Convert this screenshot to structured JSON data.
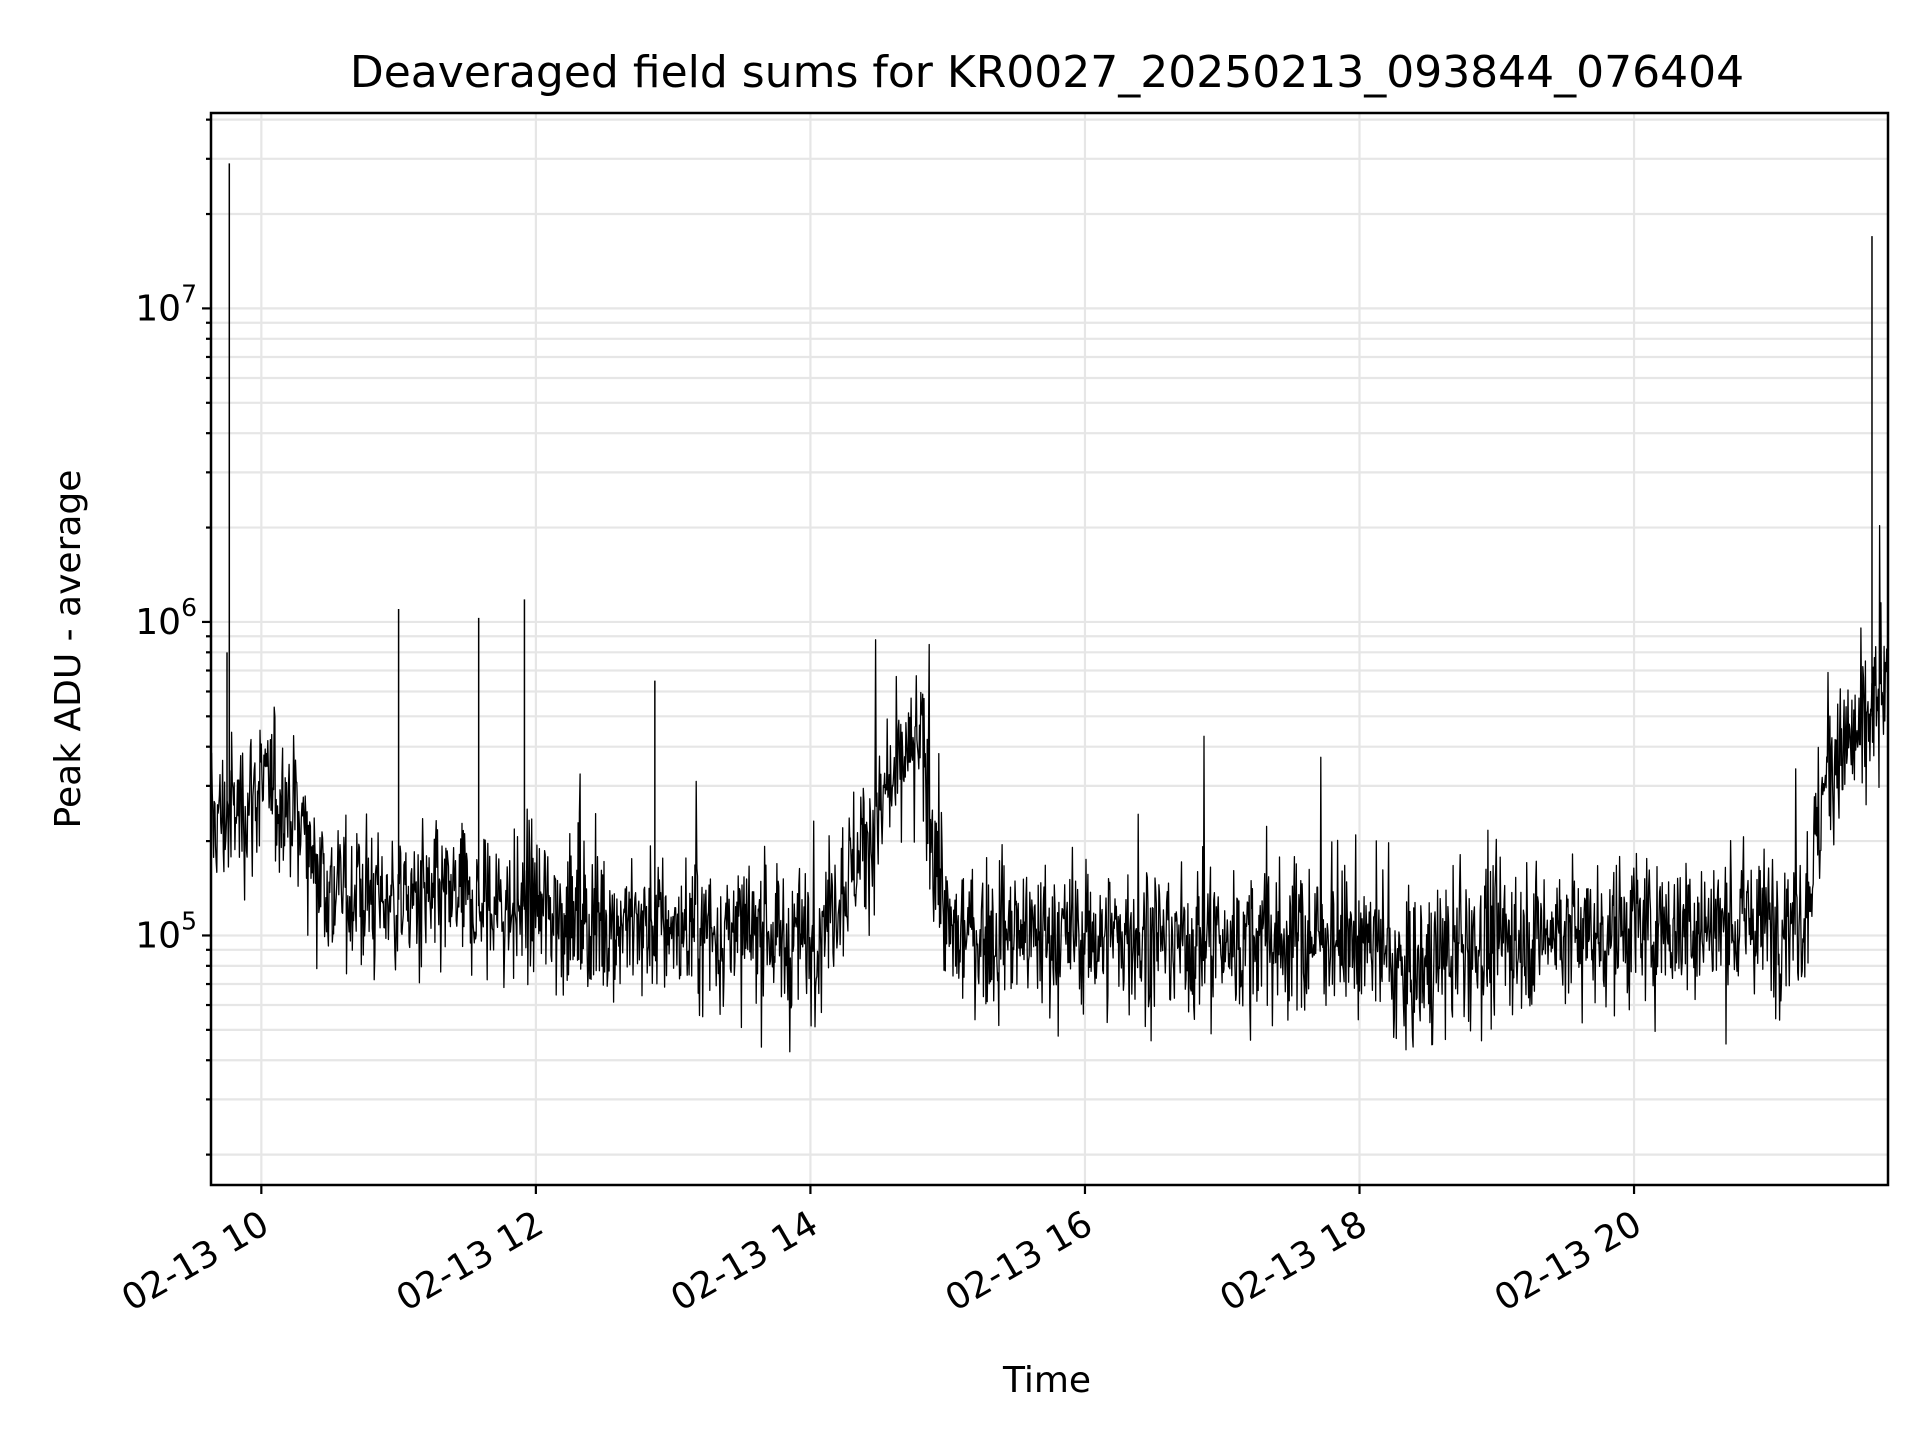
{
  "chart_data": {
    "type": "line",
    "title": "Deaveraged field sums for KR0027_20250213_093844_076404",
    "xlabel": "Time",
    "ylabel": "Peak ADU - average",
    "yscale": "log",
    "grid": "major and minor",
    "x_axis": {
      "type": "datetime",
      "range": [
        "2025-02-13 09:38",
        "2025-02-13 21:51"
      ],
      "ticks": [
        "2025-02-13 10:00",
        "2025-02-13 12:00",
        "2025-02-13 14:00",
        "2025-02-13 16:00",
        "2025-02-13 18:00",
        "2025-02-13 20:00"
      ],
      "tick_labels": [
        "02-13 10",
        "02-13 12",
        "02-13 14",
        "02-13 16",
        "02-13 18",
        "02-13 20"
      ]
    },
    "y_axis": {
      "range": [
        16000,
        42000000
      ],
      "ticks": [
        100000,
        1000000,
        10000000
      ],
      "tick_labels": [
        {
          "base": "10",
          "exp": "5"
        },
        {
          "base": "10",
          "exp": "6"
        },
        {
          "base": "10",
          "exp": "7"
        }
      ]
    },
    "series": [
      {
        "color": "#000000",
        "description_points": [
          {
            "x": "2025-02-13 09:38",
            "y": 230000
          },
          {
            "x": "2025-02-13 09:45",
            "y": 800000
          },
          {
            "x": "2025-02-13 09:46",
            "y": 29000000
          },
          {
            "x": "2025-02-13 09:50",
            "y": 250000
          },
          {
            "x": "2025-02-13 10:00",
            "y": 300000
          },
          {
            "x": "2025-02-13 10:15",
            "y": 250000
          },
          {
            "x": "2025-02-13 10:30",
            "y": 140000
          },
          {
            "x": "2025-02-13 11:00",
            "y": 1100000
          },
          {
            "x": "2025-02-13 11:00",
            "y": 130000
          },
          {
            "x": "2025-02-13 11:35",
            "y": 1030000
          },
          {
            "x": "2025-02-13 11:55",
            "y": 1180000
          },
          {
            "x": "2025-02-13 12:00",
            "y": 120000
          },
          {
            "x": "2025-02-13 12:52",
            "y": 650000
          },
          {
            "x": "2025-02-13 13:00",
            "y": 105000
          },
          {
            "x": "2025-02-13 14:00",
            "y": 95000
          },
          {
            "x": "2025-02-13 14:48",
            "y": 420000
          },
          {
            "x": "2025-02-13 15:00",
            "y": 100000
          },
          {
            "x": "2025-02-13 16:00",
            "y": 100000
          },
          {
            "x": "2025-02-13 17:00",
            "y": 95000
          },
          {
            "x": "2025-02-13 18:00",
            "y": 100000
          },
          {
            "x": "2025-02-13 18:20",
            "y": 75000
          },
          {
            "x": "2025-02-13 19:00",
            "y": 100000
          },
          {
            "x": "2025-02-13 20:00",
            "y": 105000
          },
          {
            "x": "2025-02-13 21:00",
            "y": 110000
          },
          {
            "x": "2025-02-13 21:15",
            "y": 120000
          },
          {
            "x": "2025-02-13 21:25",
            "y": 350000
          },
          {
            "x": "2025-02-13 21:40",
            "y": 450000
          },
          {
            "x": "2025-02-13 21:44",
            "y": 17000000
          },
          {
            "x": "2025-02-13 21:51",
            "y": 600000
          }
        ]
      }
    ]
  }
}
